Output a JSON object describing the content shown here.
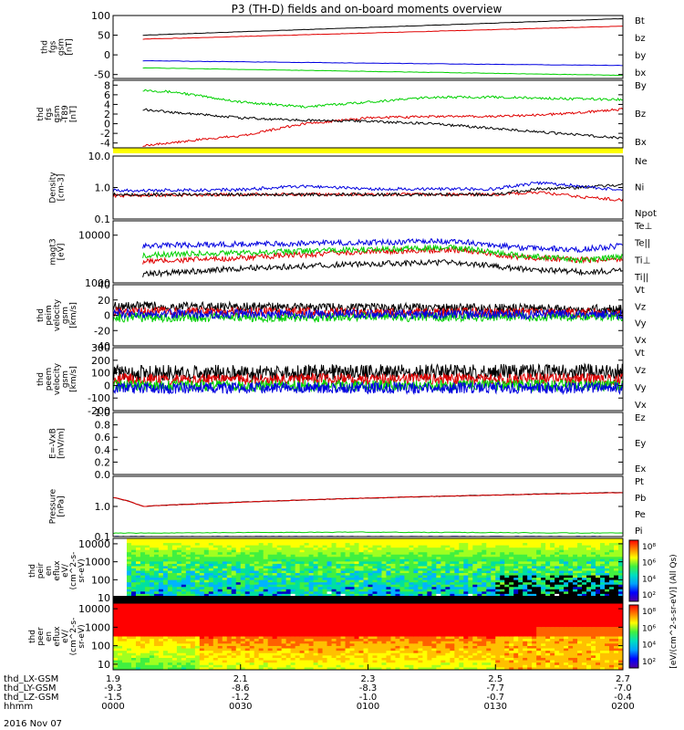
{
  "title": "P3 (TH-D) fields and on-board moments overview",
  "date_label": "2016 Nov 07",
  "time_axis": {
    "row_labels": [
      "thd_LX-GSM",
      "thd_LY-GSM",
      "thd_LZ-GSM",
      "hhmm"
    ],
    "ticks": [
      {
        "t": 0,
        "values": [
          "1.9",
          "-9.3",
          "-1.5",
          "0000"
        ]
      },
      {
        "t": 30,
        "values": [
          "2.1",
          "-8.6",
          "-1.2",
          "0030"
        ]
      },
      {
        "t": 60,
        "values": [
          "2.3",
          "-8.3",
          "-1.0",
          "0100"
        ]
      },
      {
        "t": 90,
        "values": [
          "2.5",
          "-7.7",
          "-0.7",
          "0130"
        ]
      },
      {
        "t": 120,
        "values": [
          "2.7",
          "-7.0",
          "-0.4",
          "0200"
        ]
      }
    ],
    "range_minutes": [
      0,
      120
    ]
  },
  "colors": {
    "black": "#000000",
    "red": "#e00000",
    "green": "#00d000",
    "blue": "#0000e0",
    "yellow": "#ffff00"
  },
  "chart_data": [
    {
      "id": "fgs",
      "type": "line",
      "ylabel": [
        "thd",
        "fgs",
        "gsm",
        "[nT]"
      ],
      "ylim": [
        -60,
        100
      ],
      "yscale": "linear",
      "yticks": [
        100,
        50,
        0,
        -50
      ],
      "series": [
        {
          "name": "Bt",
          "color": "#000000",
          "x": [
            7,
            120
          ],
          "values": [
            50,
            92
          ]
        },
        {
          "name": "bz",
          "color": "#e00000",
          "x": [
            7,
            120
          ],
          "values": [
            40,
            73
          ]
        },
        {
          "name": "by",
          "color": "#00d000",
          "x": [
            7,
            60,
            120
          ],
          "values": [
            -33,
            -42,
            -52
          ]
        },
        {
          "name": "bx",
          "color": "#0000e0",
          "x": [
            7,
            60,
            120
          ],
          "values": [
            -15,
            -21,
            -27
          ]
        }
      ]
    },
    {
      "id": "fgs_dip",
      "type": "line",
      "ylabel": [
        "thd",
        "fgs",
        "gsm",
        "-T89",
        "[nT]"
      ],
      "ylim": [
        -5,
        9
      ],
      "yscale": "linear",
      "yticks": [
        8,
        6,
        4,
        2,
        0,
        -2,
        -4
      ],
      "bar_below": "#ffff00",
      "series": [
        {
          "name": "By",
          "color": "#00d000",
          "x": [
            7,
            15,
            30,
            45,
            60,
            75,
            90,
            105,
            120
          ],
          "values": [
            7,
            6.5,
            4.5,
            3.5,
            4.5,
            5.5,
            5.5,
            5.2,
            5
          ]
        },
        {
          "name": "Bz",
          "color": "#e00000",
          "x": [
            7,
            15,
            30,
            45,
            60,
            75,
            90,
            105,
            120
          ],
          "values": [
            -4.5,
            -3.8,
            -2.5,
            0,
            1.2,
            1.5,
            1.5,
            2,
            3
          ]
        },
        {
          "name": "Bx",
          "color": "#000000",
          "x": [
            7,
            15,
            30,
            45,
            60,
            75,
            90,
            105,
            120
          ],
          "values": [
            3,
            2.3,
            1.2,
            0.7,
            0.5,
            0,
            -1,
            -2,
            -3
          ]
        }
      ]
    },
    {
      "id": "density",
      "type": "line",
      "ylabel": [
        "Density",
        "[cm-3]"
      ],
      "ylim": [
        0.1,
        10
      ],
      "yscale": "log",
      "yticks": [
        10.0,
        1.0,
        0.1
      ],
      "series": [
        {
          "name": "Ne",
          "color": "#e00000",
          "x": [
            0,
            30,
            60,
            90,
            100,
            110,
            120
          ],
          "values": [
            0.55,
            0.6,
            0.6,
            0.6,
            0.7,
            0.5,
            0.4
          ]
        },
        {
          "name": "Ni",
          "color": "#000000",
          "x": [
            0,
            30,
            60,
            90,
            100,
            110,
            120
          ],
          "values": [
            0.6,
            0.6,
            0.6,
            0.6,
            0.9,
            1.0,
            1.2
          ]
        },
        {
          "name": "Npot",
          "color": "#0000e0",
          "x": [
            0,
            30,
            45,
            60,
            90,
            100,
            110,
            120
          ],
          "values": [
            0.8,
            0.85,
            1.1,
            0.9,
            0.9,
            1.4,
            1.1,
            0.8
          ]
        }
      ]
    },
    {
      "id": "temperature",
      "type": "line",
      "ylabel": [
        "magt3",
        "[eV]"
      ],
      "ylim": [
        1000,
        20000
      ],
      "yscale": "log",
      "yticks": [
        10000,
        1000
      ],
      "series": [
        {
          "name": "Te⊥",
          "color": "#e00000",
          "x": [
            7,
            30,
            60,
            80,
            95,
            110,
            120
          ],
          "values": [
            2800,
            3300,
            4500,
            5000,
            3500,
            3000,
            3200
          ]
        },
        {
          "name": "Te||",
          "color": "#000000",
          "x": [
            7,
            30,
            60,
            80,
            95,
            110,
            120
          ],
          "values": [
            1500,
            2000,
            2500,
            2700,
            2000,
            1700,
            1800
          ]
        },
        {
          "name": "Ti⊥",
          "color": "#0000e0",
          "x": [
            7,
            30,
            60,
            80,
            95,
            110,
            120
          ],
          "values": [
            6000,
            6500,
            7000,
            7500,
            5500,
            5000,
            6000
          ]
        },
        {
          "name": "Ti||",
          "color": "#00d000",
          "x": [
            7,
            30,
            60,
            80,
            95,
            110,
            120
          ],
          "values": [
            3800,
            4300,
            5000,
            5500,
            3800,
            3000,
            3500
          ]
        }
      ]
    },
    {
      "id": "peim_velocity",
      "type": "line",
      "ylabel": [
        "thd",
        "peim",
        "velocity",
        "gsm",
        "[km/s]"
      ],
      "ylim": [
        -40,
        40
      ],
      "yscale": "linear",
      "yticks": [
        40,
        20,
        0,
        -20,
        -40
      ],
      "series": [
        {
          "name": "Vt",
          "color": "#000000",
          "x": [
            0,
            120
          ],
          "values": [
            12,
            8
          ]
        },
        {
          "name": "Vz",
          "color": "#e00000",
          "x": [
            0,
            120
          ],
          "values": [
            5,
            3
          ]
        },
        {
          "name": "Vy",
          "color": "#00d000",
          "x": [
            0,
            120
          ],
          "values": [
            -3,
            -2
          ]
        },
        {
          "name": "Vx",
          "color": "#0000e0",
          "x": [
            0,
            120
          ],
          "values": [
            2,
            1
          ]
        }
      ]
    },
    {
      "id": "peem_velocity",
      "type": "line",
      "ylabel": [
        "thd",
        "peem",
        "velocity",
        "gsm",
        "[km/s]"
      ],
      "ylim": [
        -200,
        300
      ],
      "yscale": "linear",
      "yticks": [
        300,
        200,
        100,
        0,
        -100,
        -200
      ],
      "series": [
        {
          "name": "Vt",
          "color": "#000000",
          "x": [
            0,
            120
          ],
          "values": [
            100,
            110
          ]
        },
        {
          "name": "Vz",
          "color": "#e00000",
          "x": [
            0,
            120
          ],
          "values": [
            50,
            50
          ]
        },
        {
          "name": "Vy",
          "color": "#00d000",
          "x": [
            0,
            120
          ],
          "values": [
            0,
            0
          ]
        },
        {
          "name": "Vx",
          "color": "#0000e0",
          "x": [
            0,
            120
          ],
          "values": [
            -20,
            -20
          ]
        }
      ]
    },
    {
      "id": "efield",
      "type": "line",
      "ylabel": [
        "E=-VxB",
        "[mV/m]"
      ],
      "ylim": [
        0,
        1
      ],
      "yscale": "linear",
      "yticks": [
        1.0,
        0.8,
        0.6,
        0.4,
        0.2,
        0.0
      ],
      "series": [
        {
          "name": "Ez",
          "color": "#e00000",
          "x": [],
          "values": []
        },
        {
          "name": "Ey",
          "color": "#00d000",
          "x": [],
          "values": []
        },
        {
          "name": "Ex",
          "color": "#0000e0",
          "x": [],
          "values": []
        }
      ]
    },
    {
      "id": "pressure",
      "type": "line",
      "ylabel": [
        "Pressure",
        "[nPa]"
      ],
      "ylim": [
        0.1,
        10
      ],
      "yscale": "log",
      "yticks": [
        1.0,
        0.1
      ],
      "series": [
        {
          "name": "Pt",
          "color": "#000000",
          "x": [
            0,
            7,
            120
          ],
          "values": [
            2.0,
            1.0,
            2.9
          ]
        },
        {
          "name": "Pb",
          "color": "#e00000",
          "x": [
            0,
            7,
            120
          ],
          "values": [
            2.0,
            1.0,
            2.9
          ]
        },
        {
          "name": "Pe",
          "color": "#00d000",
          "x": [
            0,
            60,
            120
          ],
          "values": [
            0.13,
            0.14,
            0.13
          ]
        },
        {
          "name": "Pi",
          "color": "#0000e0",
          "x": [
            0,
            60,
            120
          ],
          "values": [
            0.1,
            0.1,
            0.1
          ]
        }
      ]
    },
    {
      "id": "peir_eflux",
      "type": "heatmap",
      "ylabel": [
        "thd",
        "peir",
        "en",
        "eflux",
        "eV/",
        "(cm^2-s-",
        "sr-eV)"
      ],
      "ylim": [
        5,
        20000
      ],
      "yscale": "log",
      "yticks": [
        10000,
        1000,
        100,
        10
      ]
    },
    {
      "id": "peer_eflux",
      "type": "heatmap",
      "ylabel": [
        "thd",
        "peer",
        "en",
        "eflux",
        "eV/",
        "(cm^2-s-",
        "sr-eV)"
      ],
      "ylim": [
        5,
        20000
      ],
      "yscale": "log",
      "yticks": [
        10000,
        1000,
        100,
        10
      ]
    }
  ],
  "colorbars": [
    {
      "ticks": [
        "10⁸",
        "10⁶",
        "10⁴",
        "10²"
      ]
    },
    {
      "ticks": [
        "10⁸",
        "10⁶",
        "10⁴",
        "10²"
      ]
    }
  ],
  "colorbar_label": "[eV/(cm^2-s-sr-eV)] (All Qs)"
}
